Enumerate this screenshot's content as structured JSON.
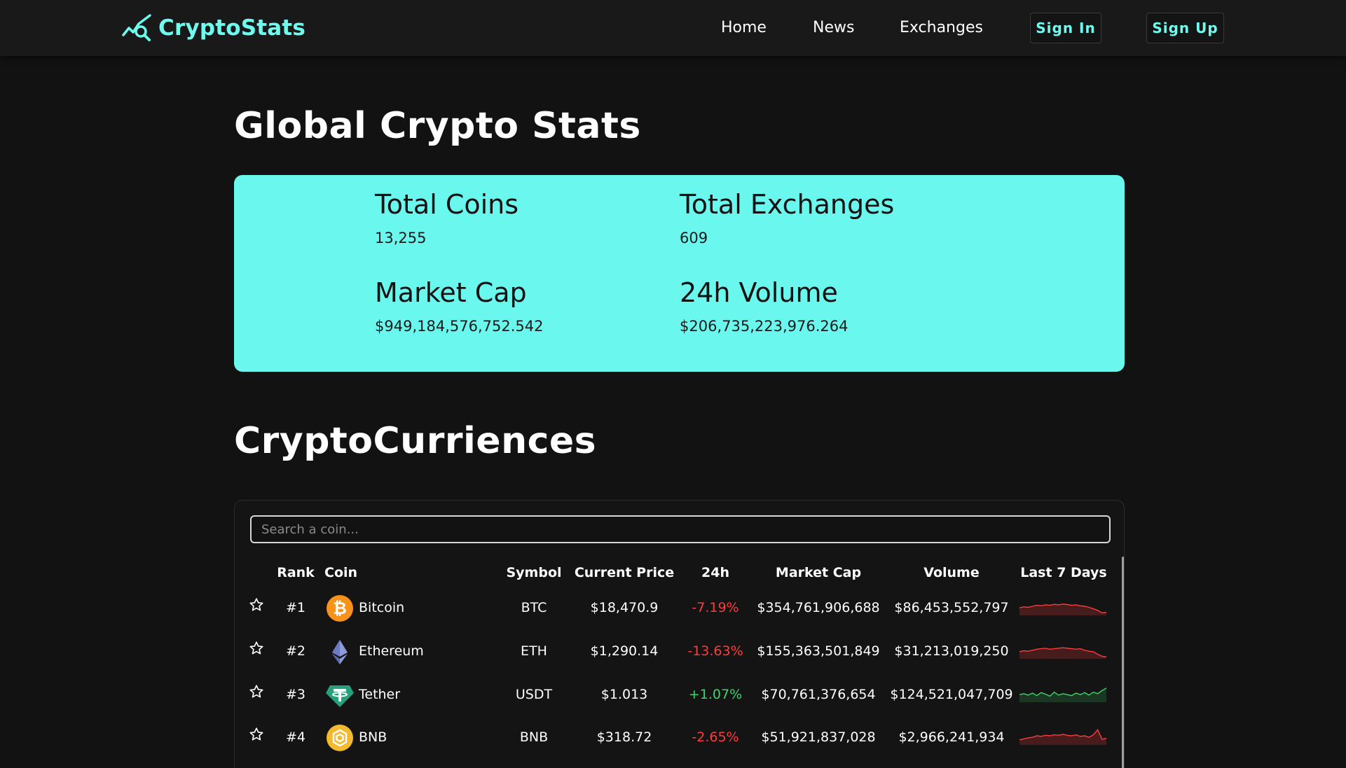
{
  "nav": {
    "brand": "CryptoStats",
    "links": [
      "Home",
      "News",
      "Exchanges"
    ],
    "sign_in": "Sign In",
    "sign_up": "Sign Up"
  },
  "global": {
    "title": "Global Crypto Stats",
    "stats": [
      {
        "label": "Total Coins",
        "value": "13,255"
      },
      {
        "label": "Total Exchanges",
        "value": "609"
      },
      {
        "label": "Market Cap",
        "value": "$949,184,576,752.542"
      },
      {
        "label": "24h Volume",
        "value": "$206,735,223,976.264"
      }
    ]
  },
  "crypto": {
    "title": "CryptoCurriences",
    "search_placeholder": "Search a coin...",
    "columns": [
      "Rank",
      "Coin",
      "Symbol",
      "Current Price",
      "24h",
      "Market Cap",
      "Volume",
      "Last 7 Days"
    ],
    "rows": [
      {
        "rank": "#1",
        "name": "Bitcoin",
        "symbol": "BTC",
        "price": "$18,470.9",
        "change": "-7.19%",
        "change_dir": "neg",
        "market_cap": "$354,761,906,688",
        "volume": "$86,453,552,797",
        "icon": "bitcoin-icon",
        "color": "#f7931a",
        "spark": [
          70,
          66,
          68,
          64,
          60,
          62,
          58,
          60,
          56,
          58,
          55,
          57,
          60,
          58,
          62,
          64,
          68,
          74,
          80,
          90,
          88
        ]
      },
      {
        "rank": "#2",
        "name": "Ethereum",
        "symbol": "ETH",
        "price": "$1,290.14",
        "change": "-13.63%",
        "change_dir": "neg",
        "market_cap": "$155,363,501,849",
        "volume": "$31,213,019,250",
        "icon": "ethereum-icon",
        "color": "#627eea",
        "spark": [
          72,
          68,
          70,
          66,
          62,
          60,
          58,
          62,
          60,
          58,
          56,
          58,
          60,
          62,
          60,
          66,
          70,
          72,
          82,
          90,
          92
        ]
      },
      {
        "rank": "#3",
        "name": "Tether",
        "symbol": "USDT",
        "price": "$1.013",
        "change": "+1.07%",
        "change_dir": "pos",
        "market_cap": "$70,761,376,654",
        "volume": "$124,521,047,709",
        "icon": "tether-icon",
        "color": "#26a17b",
        "spark": [
          70,
          66,
          72,
          64,
          74,
          62,
          68,
          76,
          60,
          72,
          66,
          70,
          74,
          64,
          70,
          62,
          72,
          60,
          66,
          54,
          44
        ]
      },
      {
        "rank": "#4",
        "name": "BNB",
        "symbol": "BNB",
        "price": "$318.72",
        "change": "-2.65%",
        "change_dir": "neg",
        "market_cap": "$51,921,837,028",
        "volume": "$2,966,241,934",
        "icon": "bnb-icon",
        "color": "#f3ba2f",
        "spark": [
          80,
          76,
          72,
          70,
          64,
          66,
          62,
          64,
          60,
          62,
          58,
          62,
          64,
          60,
          66,
          64,
          70,
          60,
          40,
          78,
          74
        ]
      }
    ]
  },
  "colors": {
    "accent": "#6ffcee",
    "card": "#6af7ee",
    "negative": "#ff3b3b",
    "positive": "#3fd46b"
  }
}
